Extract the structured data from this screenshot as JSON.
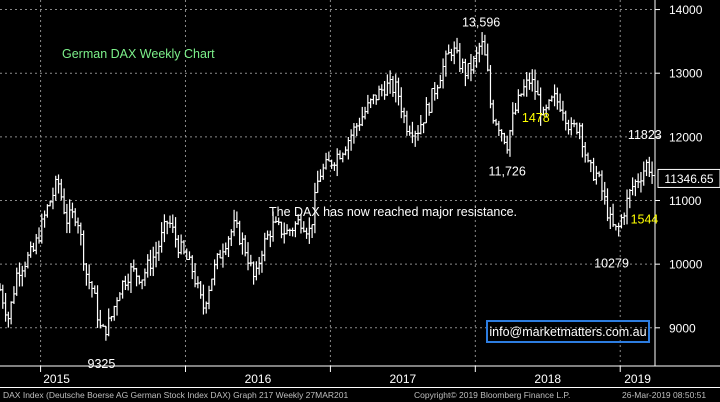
{
  "chart_data": {
    "type": "bar",
    "style": "ohlc-weekly",
    "title": "German DAX Weekly Chart",
    "y_range": [
      8400,
      14150
    ],
    "y_ticks": [
      9000,
      10000,
      11000,
      12000,
      13000,
      14000
    ],
    "y_tick_labels": [
      "9000",
      "10000",
      "11000",
      "12000",
      "13000",
      "14000"
    ],
    "x_labels": [
      {
        "label": "2015",
        "t": 2015.0
      },
      {
        "label": "2016",
        "t": 2016.0
      },
      {
        "label": "2017",
        "t": 2017.0
      },
      {
        "label": "2018",
        "t": 2018.0
      },
      {
        "label": "2019",
        "t": 2019.0
      }
    ],
    "x_range": [
      2014.72,
      2019.24
    ],
    "grid": true,
    "price_path": [
      {
        "t": 2014.72,
        "v": 9600
      },
      {
        "t": 2014.78,
        "v": 9150
      },
      {
        "t": 2014.84,
        "v": 9900
      },
      {
        "t": 2014.95,
        "v": 10200
      },
      {
        "t": 2015.05,
        "v": 10900
      },
      {
        "t": 2015.12,
        "v": 11300
      },
      {
        "t": 2015.18,
        "v": 10700
      },
      {
        "t": 2015.25,
        "v": 10800
      },
      {
        "t": 2015.32,
        "v": 9800
      },
      {
        "t": 2015.36,
        "v": 9600
      },
      {
        "t": 2015.42,
        "v": 8900
      },
      {
        "t": 2015.48,
        "v": 9100
      },
      {
        "t": 2015.54,
        "v": 9600
      },
      {
        "t": 2015.62,
        "v": 9900
      },
      {
        "t": 2015.7,
        "v": 9800
      },
      {
        "t": 2015.8,
        "v": 10200
      },
      {
        "t": 2015.88,
        "v": 10700
      },
      {
        "t": 2015.95,
        "v": 10300
      },
      {
        "t": 2016.05,
        "v": 9900
      },
      {
        "t": 2016.12,
        "v": 9300
      },
      {
        "t": 2016.18,
        "v": 9800
      },
      {
        "t": 2016.26,
        "v": 10300
      },
      {
        "t": 2016.34,
        "v": 10600
      },
      {
        "t": 2016.42,
        "v": 10200
      },
      {
        "t": 2016.48,
        "v": 9700
      },
      {
        "t": 2016.52,
        "v": 10200
      },
      {
        "t": 2016.6,
        "v": 10600
      },
      {
        "t": 2016.7,
        "v": 10500
      },
      {
        "t": 2016.8,
        "v": 10700
      },
      {
        "t": 2016.86,
        "v": 10500
      },
      {
        "t": 2016.92,
        "v": 11400
      },
      {
        "t": 2017.0,
        "v": 11600
      },
      {
        "t": 2017.08,
        "v": 11800
      },
      {
        "t": 2017.16,
        "v": 12100
      },
      {
        "t": 2017.24,
        "v": 12400
      },
      {
        "t": 2017.3,
        "v": 12600
      },
      {
        "t": 2017.38,
        "v": 12800
      },
      {
        "t": 2017.46,
        "v": 12750
      },
      {
        "t": 2017.52,
        "v": 12200
      },
      {
        "t": 2017.6,
        "v": 12100
      },
      {
        "t": 2017.68,
        "v": 12500
      },
      {
        "t": 2017.76,
        "v": 13000
      },
      {
        "t": 2017.84,
        "v": 13400
      },
      {
        "t": 2017.88,
        "v": 13200
      },
      {
        "t": 2017.94,
        "v": 13000
      },
      {
        "t": 2018.0,
        "v": 13200
      },
      {
        "t": 2018.04,
        "v": 13500
      },
      {
        "t": 2018.08,
        "v": 13100
      },
      {
        "t": 2018.11,
        "v": 12400
      },
      {
        "t": 2018.16,
        "v": 12200
      },
      {
        "t": 2018.22,
        "v": 11900
      },
      {
        "t": 2018.26,
        "v": 12300
      },
      {
        "t": 2018.32,
        "v": 12700
      },
      {
        "t": 2018.38,
        "v": 12900
      },
      {
        "t": 2018.42,
        "v": 12700
      },
      {
        "t": 2018.47,
        "v": 12300
      },
      {
        "t": 2018.54,
        "v": 12600
      },
      {
        "t": 2018.6,
        "v": 12500
      },
      {
        "t": 2018.66,
        "v": 12100
      },
      {
        "t": 2018.72,
        "v": 12200
      },
      {
        "t": 2018.78,
        "v": 11500
      },
      {
        "t": 2018.84,
        "v": 11400
      },
      {
        "t": 2018.88,
        "v": 11100
      },
      {
        "t": 2018.94,
        "v": 10600
      },
      {
        "t": 2018.98,
        "v": 10500
      },
      {
        "t": 2019.02,
        "v": 10800
      },
      {
        "t": 2019.08,
        "v": 11200
      },
      {
        "t": 2019.14,
        "v": 11400
      },
      {
        "t": 2019.19,
        "v": 11600
      },
      {
        "t": 2019.22,
        "v": 11400
      }
    ],
    "last_price": {
      "label": "11346.65",
      "v": 11346.65
    },
    "annotations": [
      {
        "text": "13,596",
        "t": 2018.04,
        "v": 13596,
        "color": "#ffffff",
        "pos": "above"
      },
      {
        "text": "9325",
        "t": 2015.42,
        "v": 8700,
        "color": "#ffffff",
        "pos": "below"
      },
      {
        "text": "11,726",
        "t": 2018.22,
        "v": 11726,
        "color": "#ffffff",
        "pos": "below"
      },
      {
        "text": "10279",
        "t": 2018.94,
        "v": 10279,
        "color": "#ffffff",
        "pos": "below"
      },
      {
        "text": "11823",
        "t": 2019.17,
        "v": 11823,
        "color": "#ffffff",
        "pos": "above"
      },
      {
        "text": "1478",
        "t": 2018.28,
        "v": 12300,
        "color": "#ffff00",
        "pos": "right"
      },
      {
        "text": "1544",
        "t": 2019.03,
        "v": 10700,
        "color": "#ffff00",
        "pos": "right"
      }
    ],
    "commentary": "The DAX has now reached major resistance.",
    "watermark": "info@marketmatters.com.au"
  },
  "colors": {
    "background": "#000000",
    "bars": "#ffffff",
    "grid": "#8a8a8a",
    "title": "#7cf08a",
    "highlight": "#ffff00",
    "watermark_box": "#2d7de0"
  },
  "footer": {
    "description": "DAX Index (Deutsche Boerse AG German Stock Index DAX) Graph 217  Weekly 27MAR201",
    "copyright": "Copyright© 2019 Bloomberg Finance L.P.",
    "timestamp": "26-Mar-2019 08:50:51"
  }
}
